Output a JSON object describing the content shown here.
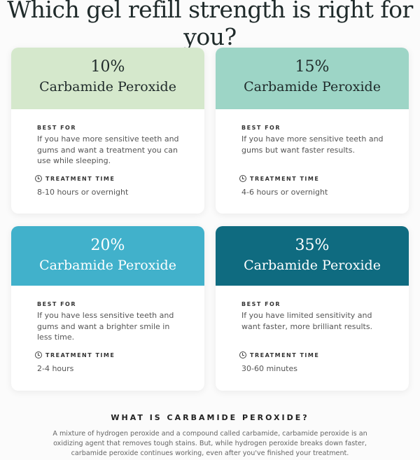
{
  "title": "Which gel refill strength is right for you?",
  "best_for_label": "BEST FOR",
  "treatment_time_label": "TREATMENT TIME",
  "cards": [
    {
      "percent": "10%",
      "name": "Carbamide Peroxide",
      "color": "#d5e8cc",
      "best_for": "If you have more sensitive teeth and gums and want a treatment you can use while sleeping.",
      "time": "8-10 hours or overnight"
    },
    {
      "percent": "15%",
      "name": "Carbamide Peroxide",
      "color": "#9dd5c6",
      "best_for": "If you have more sensitive teeth and gums but want faster results.",
      "time": "4-6 hours or overnight"
    },
    {
      "percent": "20%",
      "name": "Carbamide Peroxide",
      "color": "#41b1cb",
      "best_for": "If you have less sensitive teeth and gums and want a brighter smile in less time.",
      "time": "2-4 hours"
    },
    {
      "percent": "35%",
      "name": "Carbamide Peroxide",
      "color": "#0f6b80",
      "best_for": "If you have limited sensitivity and want faster, more brilliant results.",
      "time": "30-60 minutes"
    }
  ],
  "section": {
    "heading": "WHAT IS CARBAMIDE PEROXIDE?",
    "text": "A mixture of hydrogen peroxide and a compound called carbamide, carbamide peroxide is an oxidizing agent that removes tough stains. But, while  hydrogen peroxide breaks down faster, carbamide peroxide continues working, even after you've finished your treatment."
  }
}
